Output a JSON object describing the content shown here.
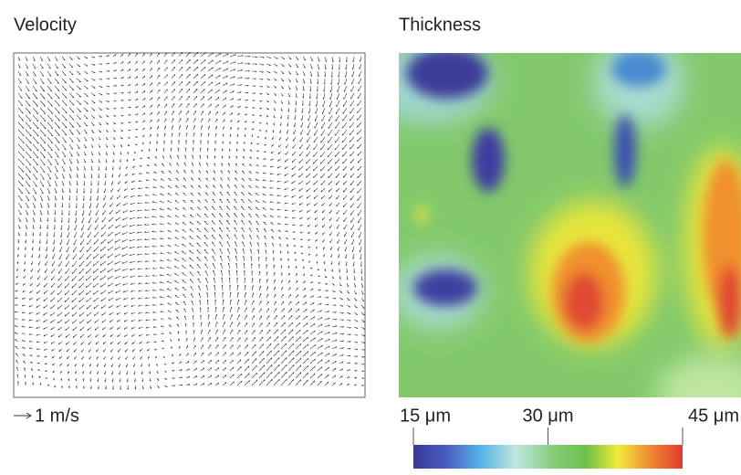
{
  "panels": [
    {
      "title": "Velocity",
      "scale_label": "1 m/s"
    },
    {
      "title": "Thickness",
      "colorbar": {
        "lim": [
          15,
          45
        ],
        "ticks": [
          {
            "value": 15,
            "label": "15 μm"
          },
          {
            "value": 30,
            "label": "30 μm"
          },
          {
            "value": 45,
            "label": "45 μm"
          }
        ]
      }
    }
  ]
}
